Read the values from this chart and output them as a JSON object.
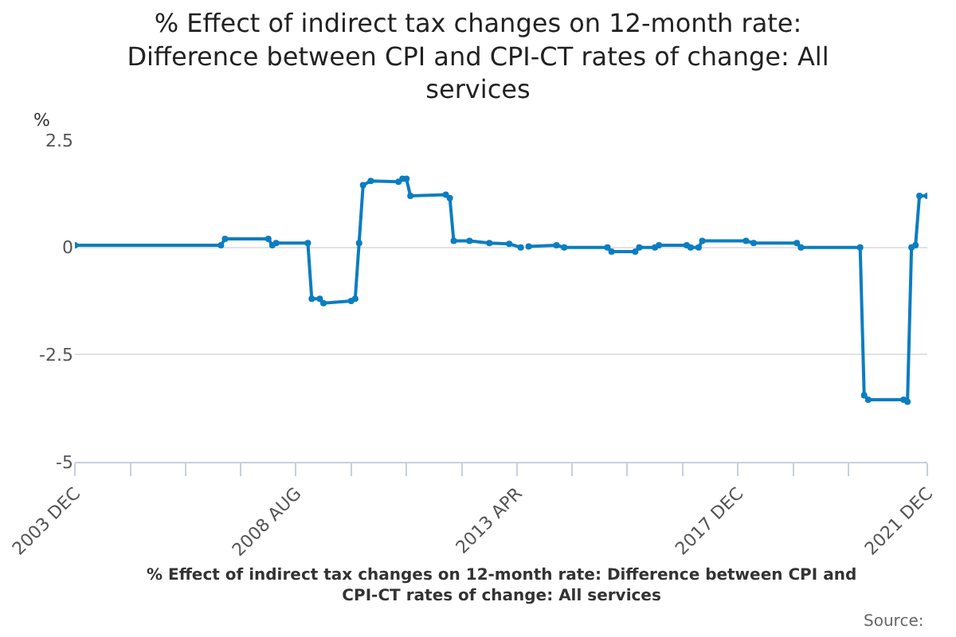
{
  "chart_data": {
    "type": "line",
    "title": "% Effect of indirect tax changes on 12-month rate: Difference between CPI and CPI-CT rates of change: All services",
    "ylabel": "%",
    "annotations": [
      "% Effect of indirect tax changes on 12-month rate: Difference between CPI and CPI-CT rates of change: All services",
      "Source:"
    ],
    "x": [
      "2003-12",
      "2007-01",
      "2007-02",
      "2008-01",
      "2008-02",
      "2008-03",
      "2008-11",
      "2008-12",
      "2009-02",
      "2009-03",
      "2009-10",
      "2009-11",
      "2009-12",
      "2010-01",
      "2010-03",
      "2010-10",
      "2010-11",
      "2010-12",
      "2011-01",
      "2011-10",
      "2011-11",
      "2011-12",
      "2012-04",
      "2012-09",
      "2013-02",
      "2013-05",
      "2013-06",
      "2013-07",
      "2014-02",
      "2014-04",
      "2015-03",
      "2015-04",
      "2015-10",
      "2015-11",
      "2016-03",
      "2016-04",
      "2016-11",
      "2016-12",
      "2017-02",
      "2017-03",
      "2018-02",
      "2018-04",
      "2019-03",
      "2019-04",
      "2020-07",
      "2020-08",
      "2020-09",
      "2021-06",
      "2021-07",
      "2021-08",
      "2021-09",
      "2021-10",
      "2021-12"
    ],
    "series": [
      {
        "color": "#0b7dc2",
        "values": [
          0.05,
          0.05,
          0.2,
          0.2,
          0.05,
          0.1,
          0.1,
          -1.2,
          -1.2,
          -1.3,
          -1.25,
          -1.2,
          0.1,
          1.45,
          1.55,
          1.53,
          1.6,
          1.6,
          1.2,
          1.23,
          1.15,
          0.15,
          0.15,
          0.1,
          0.08,
          0.0,
          null,
          0.02,
          0.05,
          0.0,
          0.0,
          -0.1,
          -0.1,
          0.0,
          0.0,
          0.05,
          0.05,
          0.0,
          0.0,
          0.15,
          0.15,
          0.1,
          0.1,
          0.0,
          0.0,
          -3.45,
          -3.55,
          -3.55,
          -3.6,
          0.0,
          0.05,
          1.2,
          1.2
        ]
      }
    ],
    "xlim": [
      "2003-12",
      "2021-12"
    ],
    "xticks": [
      {
        "value": "2003-12",
        "label": "2003 DEC"
      },
      {
        "value": "2005-02",
        "label": null
      },
      {
        "value": "2006-04",
        "label": null
      },
      {
        "value": "2007-06",
        "label": null
      },
      {
        "value": "2008-08",
        "label": "2008 AUG"
      },
      {
        "value": "2009-10",
        "label": null
      },
      {
        "value": "2010-12",
        "label": null
      },
      {
        "value": "2012-02",
        "label": null
      },
      {
        "value": "2013-04",
        "label": "2013 APR"
      },
      {
        "value": "2014-06",
        "label": null
      },
      {
        "value": "2015-08",
        "label": null
      },
      {
        "value": "2016-10",
        "label": null
      },
      {
        "value": "2017-12",
        "label": "2017 DEC"
      },
      {
        "value": "2019-02",
        "label": null
      },
      {
        "value": "2020-04",
        "label": null
      },
      {
        "value": "2021-12",
        "label": "2021 DEC"
      }
    ],
    "ylim": [
      -5,
      2.5
    ],
    "yticks": [
      2.5,
      0,
      -2.5,
      -5
    ],
    "grid": "y",
    "marker": "circle",
    "line_style": "solid"
  }
}
